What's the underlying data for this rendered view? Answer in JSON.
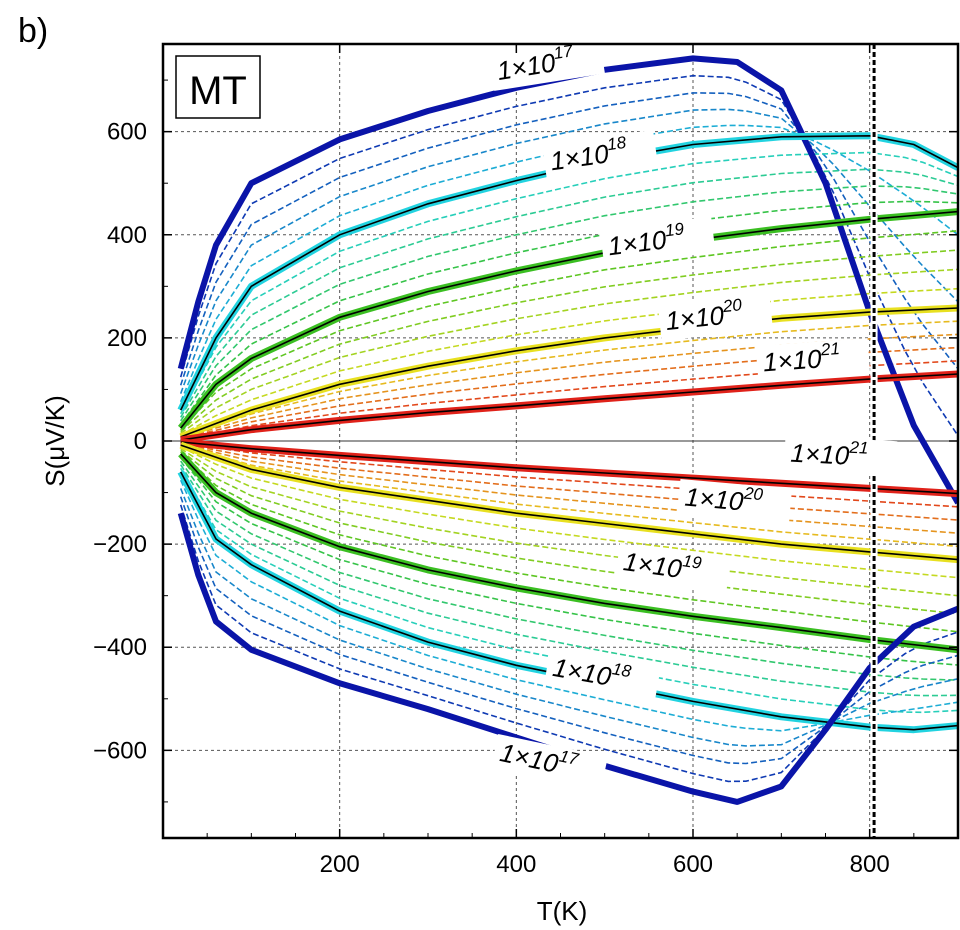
{
  "panel_label": "b)",
  "chart_data": {
    "type": "line",
    "title": "",
    "model_label": "MT",
    "xlabel": "T(K)",
    "ylabel": "S(μV/K)",
    "xlim": [
      0,
      900
    ],
    "ylim": [
      -770,
      770
    ],
    "x_ticks": [
      200,
      400,
      600,
      800
    ],
    "x_tick_labels": [
      "200",
      "400",
      "600",
      "800"
    ],
    "y_ticks": [
      -600,
      -400,
      -200,
      0,
      200,
      400,
      600
    ],
    "y_tick_labels": [
      "−600",
      "−400",
      "−200",
      "0",
      "200",
      "400",
      "600"
    ],
    "grid": true,
    "vertical_marker": {
      "x": 805,
      "style": "dashed"
    },
    "labeled_series": [
      {
        "name": "1×10^17 (p-type)",
        "sign": 1,
        "doping": 1e+17,
        "color": "#0a14a8",
        "points": [
          [
            20,
            140
          ],
          [
            40,
            270
          ],
          [
            60,
            380
          ],
          [
            100,
            500
          ],
          [
            200,
            585
          ],
          [
            300,
            640
          ],
          [
            400,
            685
          ],
          [
            500,
            720
          ],
          [
            600,
            742
          ],
          [
            650,
            735
          ],
          [
            700,
            680
          ],
          [
            750,
            500
          ],
          [
            800,
            250
          ],
          [
            850,
            30
          ],
          [
            900,
            -120
          ]
        ]
      },
      {
        "name": "1×10^18 (p-type)",
        "sign": 1,
        "doping": 1e+18,
        "color": "#22d3e0",
        "points": [
          [
            20,
            60
          ],
          [
            60,
            200
          ],
          [
            100,
            300
          ],
          [
            200,
            400
          ],
          [
            300,
            460
          ],
          [
            400,
            505
          ],
          [
            500,
            545
          ],
          [
            600,
            575
          ],
          [
            700,
            590
          ],
          [
            800,
            592
          ],
          [
            850,
            575
          ],
          [
            900,
            530
          ]
        ]
      },
      {
        "name": "1×10^19 (p-type)",
        "sign": 1,
        "doping": 1e+19,
        "color": "#3bbf22",
        "points": [
          [
            20,
            25
          ],
          [
            60,
            110
          ],
          [
            100,
            160
          ],
          [
            200,
            240
          ],
          [
            300,
            290
          ],
          [
            400,
            330
          ],
          [
            500,
            365
          ],
          [
            600,
            390
          ],
          [
            700,
            412
          ],
          [
            800,
            430
          ],
          [
            900,
            445
          ]
        ]
      },
      {
        "name": "1×10^20 (p-type)",
        "sign": 1,
        "doping": 1e+20,
        "color": "#e8e020",
        "points": [
          [
            20,
            8
          ],
          [
            100,
            60
          ],
          [
            200,
            110
          ],
          [
            300,
            145
          ],
          [
            400,
            175
          ],
          [
            500,
            200
          ],
          [
            600,
            220
          ],
          [
            700,
            238
          ],
          [
            800,
            250
          ],
          [
            900,
            258
          ]
        ]
      },
      {
        "name": "1×10^21 (p-type)",
        "sign": 1,
        "doping": 1e+21,
        "color": "#e0221a",
        "points": [
          [
            20,
            2
          ],
          [
            100,
            22
          ],
          [
            200,
            40
          ],
          [
            300,
            55
          ],
          [
            400,
            68
          ],
          [
            500,
            82
          ],
          [
            600,
            95
          ],
          [
            700,
            108
          ],
          [
            800,
            120
          ],
          [
            900,
            130
          ]
        ]
      },
      {
        "name": "1×10^21 (n-type)",
        "sign": -1,
        "doping": 1e+21,
        "color": "#e0221a",
        "points": [
          [
            20,
            -2
          ],
          [
            100,
            -15
          ],
          [
            200,
            -28
          ],
          [
            300,
            -40
          ],
          [
            400,
            -52
          ],
          [
            500,
            -62
          ],
          [
            600,
            -72
          ],
          [
            700,
            -82
          ],
          [
            800,
            -92
          ],
          [
            900,
            -102
          ]
        ]
      },
      {
        "name": "1×10^20 (n-type)",
        "sign": -1,
        "doping": 1e+20,
        "color": "#e8e020",
        "points": [
          [
            20,
            -8
          ],
          [
            100,
            -55
          ],
          [
            200,
            -90
          ],
          [
            300,
            -115
          ],
          [
            400,
            -140
          ],
          [
            500,
            -160
          ],
          [
            600,
            -180
          ],
          [
            700,
            -200
          ],
          [
            800,
            -215
          ],
          [
            900,
            -230
          ]
        ]
      },
      {
        "name": "1×10^19 (n-type)",
        "sign": -1,
        "doping": 1e+19,
        "color": "#3bbf22",
        "points": [
          [
            20,
            -25
          ],
          [
            60,
            -100
          ],
          [
            100,
            -140
          ],
          [
            200,
            -205
          ],
          [
            300,
            -250
          ],
          [
            400,
            -285
          ],
          [
            500,
            -315
          ],
          [
            600,
            -340
          ],
          [
            700,
            -362
          ],
          [
            800,
            -385
          ],
          [
            900,
            -405
          ]
        ]
      },
      {
        "name": "1×10^18 (n-type)",
        "sign": -1,
        "doping": 1e+18,
        "color": "#22d3e0",
        "points": [
          [
            20,
            -60
          ],
          [
            60,
            -190
          ],
          [
            100,
            -240
          ],
          [
            200,
            -330
          ],
          [
            300,
            -390
          ],
          [
            400,
            -435
          ],
          [
            500,
            -470
          ],
          [
            600,
            -505
          ],
          [
            700,
            -535
          ],
          [
            800,
            -555
          ],
          [
            850,
            -560
          ],
          [
            900,
            -552
          ]
        ]
      },
      {
        "name": "1×10^17 (n-type)",
        "sign": -1,
        "doping": 1e+17,
        "color": "#0a14a8",
        "points": [
          [
            20,
            -140
          ],
          [
            40,
            -260
          ],
          [
            60,
            -350
          ],
          [
            100,
            -405
          ],
          [
            200,
            -470
          ],
          [
            300,
            -520
          ],
          [
            400,
            -575
          ],
          [
            500,
            -630
          ],
          [
            600,
            -680
          ],
          [
            650,
            -700
          ],
          [
            700,
            -670
          ],
          [
            750,
            -560
          ],
          [
            800,
            -440
          ],
          [
            850,
            -360
          ],
          [
            900,
            -325
          ]
        ]
      }
    ],
    "annotations": [
      {
        "base": "1×10",
        "exp": "17",
        "x": 380,
        "y": 700,
        "angle": -9
      },
      {
        "base": "1×10",
        "exp": "18",
        "x": 440,
        "y": 525,
        "angle": -8
      },
      {
        "base": "1×10",
        "exp": "19",
        "x": 505,
        "y": 360,
        "angle": -7
      },
      {
        "base": "1×10",
        "exp": "20",
        "x": 570,
        "y": 215,
        "angle": -6
      },
      {
        "base": "1×10",
        "exp": "21",
        "x": 680,
        "y": 135,
        "angle": -4
      },
      {
        "base": "1×10",
        "exp": "21",
        "x": 710,
        "y": -40,
        "angle": 3
      },
      {
        "base": "1×10",
        "exp": "20",
        "x": 590,
        "y": -125,
        "angle": 5
      },
      {
        "base": "1×10",
        "exp": "19",
        "x": 520,
        "y": -250,
        "angle": 8
      },
      {
        "base": "1×10",
        "exp": "18",
        "x": 440,
        "y": -455,
        "angle": 10
      },
      {
        "base": "1×10",
        "exp": "17",
        "x": 380,
        "y": -620,
        "angle": 12
      }
    ]
  }
}
